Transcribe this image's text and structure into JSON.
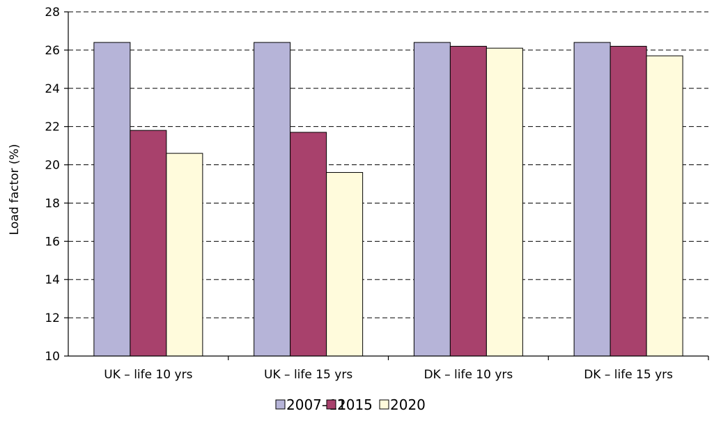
{
  "chart_data": {
    "type": "bar",
    "title": "",
    "xlabel": "",
    "ylabel": "Load factor (%)",
    "ylim": [
      10,
      28
    ],
    "yticks": [
      10,
      12,
      14,
      16,
      18,
      20,
      22,
      24,
      26,
      28
    ],
    "grid": true,
    "legend_position": "bottom",
    "categories": [
      "UK – life 10 yrs",
      "UK – life 15 yrs",
      "DK – life 10 yrs",
      "DK – life 15 yrs"
    ],
    "series": [
      {
        "name": "2007–11",
        "color": "#b6b4d8",
        "values": [
          26.4,
          26.4,
          26.4,
          26.4
        ]
      },
      {
        "name": "2015",
        "color": "#a8416c",
        "values": [
          21.8,
          21.7,
          26.2,
          26.2
        ]
      },
      {
        "name": "2020",
        "color": "#fffbdc",
        "values": [
          20.6,
          19.6,
          26.1,
          25.7
        ]
      }
    ]
  }
}
